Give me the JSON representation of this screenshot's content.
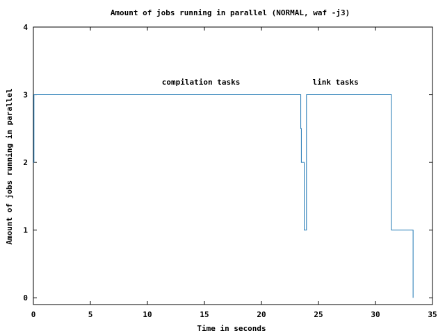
{
  "chart_data": {
    "type": "line",
    "title": "Amount of jobs running in parallel (NORMAL, waf -j3)",
    "xlabel": "Time in seconds",
    "ylabel": "Amount of jobs running in parallel",
    "xlim": [
      0,
      35
    ],
    "ylim": [
      -0.1,
      4
    ],
    "xticks": [
      "0",
      "5",
      "10",
      "15",
      "20",
      "25",
      "30",
      "35"
    ],
    "yticks": [
      "0",
      "1",
      "2",
      "3",
      "4"
    ],
    "grid": false,
    "series": [
      {
        "color": "#1f77b4",
        "step": true,
        "x": [
          0.0,
          0.05,
          23.45,
          23.5,
          23.75,
          23.8,
          23.95,
          31.4,
          33.3
        ],
        "y": [
          2,
          3,
          2.5,
          2,
          1,
          1,
          3,
          1,
          0
        ]
      }
    ],
    "annotations": [
      {
        "text": "compilation tasks",
        "x": 14.7,
        "y": 3.15
      },
      {
        "text": "link tasks",
        "x": 26.5,
        "y": 3.15
      }
    ]
  }
}
